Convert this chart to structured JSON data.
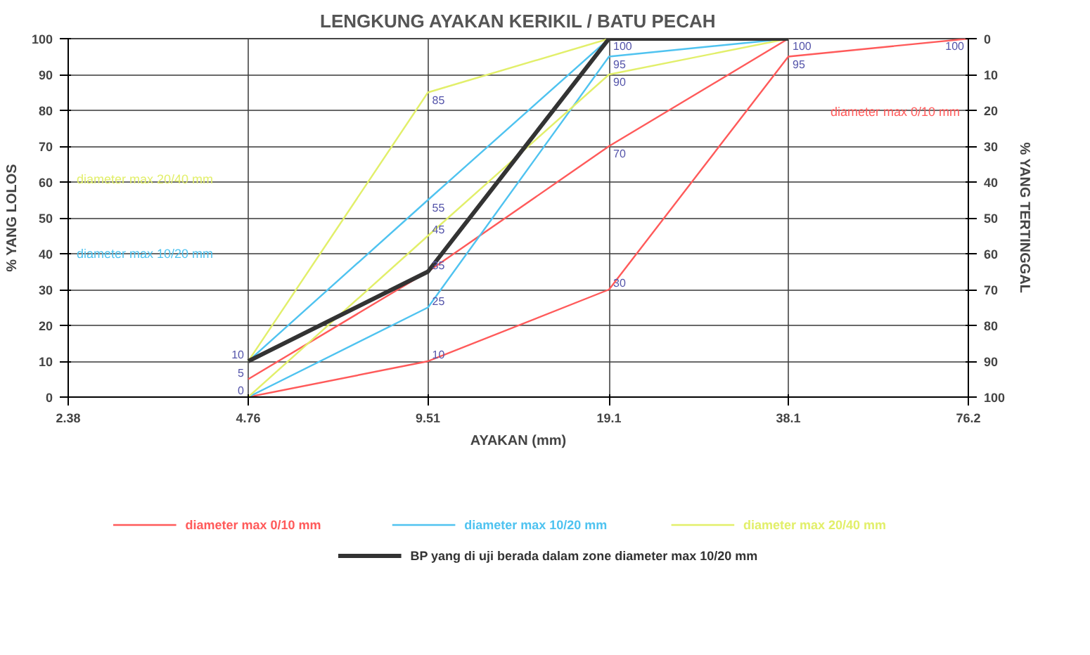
{
  "chart_data": {
    "type": "line",
    "title": "LENGKUNG AYAKAN KERIKIL / BATU PECAH",
    "xlabel": "AYAKAN (mm)",
    "ylabel": "% YANG LOLOS",
    "y2label": "% YANG TERTINGGAL",
    "log": "x",
    "xlim": [
      2.38,
      76.2
    ],
    "xticks": [
      2.38,
      4.76,
      9.51,
      19.1,
      38.1,
      76.2
    ],
    "ylim": [
      0,
      100
    ],
    "yticks": [
      0,
      10,
      20,
      30,
      40,
      50,
      60,
      70,
      80,
      90,
      100
    ],
    "y2lim": [
      100,
      0
    ],
    "y2ticks": [
      0,
      10,
      20,
      30,
      40,
      50,
      60,
      70,
      80,
      90,
      100
    ],
    "grid": true,
    "legend": "bottom",
    "marker": "none",
    "line_style": "solid",
    "series": [
      {
        "name": "diameter max 0/10 mm",
        "color": "#ff5a5a",
        "x": [
          4.76,
          9.51,
          19.1,
          38.1,
          76.2
        ],
        "values": [
          0,
          10,
          30,
          95,
          100
        ],
        "value_labels": [
          null,
          "10",
          "30",
          "95",
          "100"
        ]
      },
      {
        "color": "#ff5a5a",
        "x": [
          4.76,
          9.51,
          19.1,
          38.1
        ],
        "values": [
          5,
          35,
          70,
          100
        ],
        "value_labels": [
          "5",
          null,
          "70",
          "100"
        ]
      },
      {
        "name": "diameter max 10/20 mm",
        "color": "#4fc3f0",
        "x": [
          4.76,
          9.51,
          19.1,
          38.1
        ],
        "values": [
          0,
          25,
          95,
          100
        ],
        "value_labels": [
          "0",
          "25",
          "95",
          null
        ]
      },
      {
        "color": "#4fc3f0",
        "x": [
          4.76,
          9.51,
          19.1
        ],
        "values": [
          10,
          55,
          100
        ],
        "value_labels": [
          "10",
          "55",
          "100"
        ]
      },
      {
        "name": "diameter max 20/40 mm",
        "color": "#e2ef6a",
        "x": [
          4.76,
          9.51,
          19.1,
          38.1
        ],
        "values": [
          0,
          45,
          90,
          100
        ],
        "value_labels": [
          null,
          "45",
          "90",
          null
        ]
      },
      {
        "color": "#e2ef6a",
        "x": [
          4.76,
          9.51,
          19.1
        ],
        "values": [
          10,
          85,
          100
        ],
        "value_labels": [
          null,
          "85",
          null
        ]
      },
      {
        "name": "BP yang di uji berada dalam zone diameter max 10/20 mm",
        "color": "#333333",
        "x": [
          4.76,
          9.51,
          19.1,
          38.1
        ],
        "values": [
          10,
          35,
          100,
          100
        ],
        "value_labels": [
          null,
          "35",
          null,
          null
        ]
      }
    ],
    "annotations": [
      "diameter max 20/40 mm",
      "diameter max 10/20 mm",
      "diameter max 0/10 mm"
    ]
  }
}
